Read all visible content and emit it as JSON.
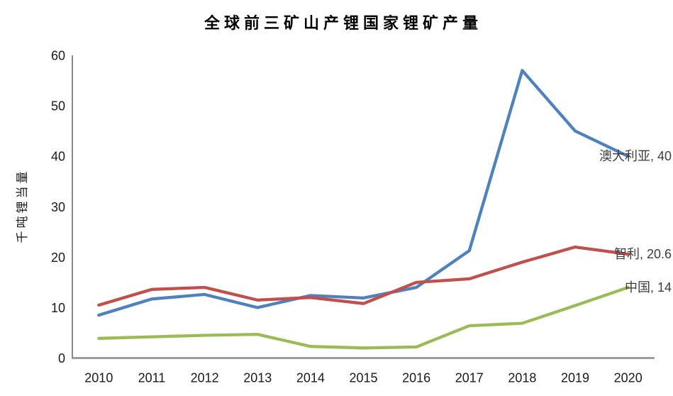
{
  "chart_data": {
    "type": "line",
    "title": "全球前三矿山产锂国家锂矿产量",
    "ylabel": "千吨锂当量",
    "xlabel": "",
    "categories": [
      "2010",
      "2011",
      "2012",
      "2013",
      "2014",
      "2015",
      "2016",
      "2017",
      "2018",
      "2019",
      "2020"
    ],
    "ylim": [
      0,
      60
    ],
    "yticks": [
      0,
      10,
      20,
      30,
      40,
      50,
      60
    ],
    "grid": false,
    "legend_position": "line-end-labels",
    "series": [
      {
        "id": "australia",
        "name": "澳大利亚",
        "color": "#4F81BD",
        "end_label": "澳大利亚, 40",
        "values": [
          8.5,
          11.7,
          12.6,
          10,
          12.4,
          11.9,
          14,
          21.3,
          57,
          45,
          40
        ]
      },
      {
        "id": "chile",
        "name": "智利",
        "color": "#C0504D",
        "end_label": "智利, 20.6",
        "values": [
          10.5,
          13.6,
          14,
          11.5,
          12,
          10.8,
          15,
          15.7,
          19,
          22,
          20.6
        ]
      },
      {
        "id": "china",
        "name": "中国",
        "color": "#9BBB59",
        "end_label": "中国, 14",
        "values": [
          3.9,
          4.2,
          4.5,
          4.7,
          2.3,
          2,
          2.2,
          6.4,
          6.9,
          10.4,
          14
        ]
      }
    ]
  },
  "colors": {
    "background": "#FFFFFF",
    "axis": "#8A8A8A",
    "tick_text": "#1A1A1A",
    "title_text": "#000000",
    "end_label_text": "#3D3D3D"
  }
}
